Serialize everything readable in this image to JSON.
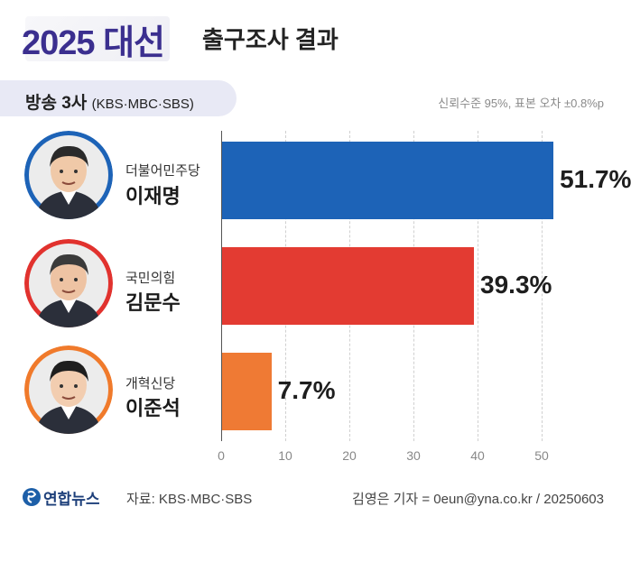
{
  "header": {
    "title_year": "2025 대선",
    "title_rest": "출구조사 결과",
    "subtitle_main": "방송 3사",
    "subtitle_detail": "(KBS·MBC·SBS)",
    "note": "신뢰수준 95%, 표본 오차 ±0.8%p"
  },
  "candidates": [
    {
      "party": "더불어민주당",
      "name": "이재명",
      "percent_label": "51.7%",
      "ring_color": "#1d63b7",
      "face_color": "#f0c9a8",
      "hair_color": "#2a2a2a"
    },
    {
      "party": "국민의힘",
      "name": "김문수",
      "percent_label": "39.3%",
      "ring_color": "#e1322e",
      "face_color": "#eec3a3",
      "hair_color": "#3a3a3a"
    },
    {
      "party": "개혁신당",
      "name": "이준석",
      "percent_label": "7.7%",
      "ring_color": "#f07a2b",
      "face_color": "#f2cdb0",
      "hair_color": "#1e1e1e"
    }
  ],
  "chart_data": {
    "type": "bar",
    "orientation": "horizontal",
    "categories": [
      "이재명",
      "김문수",
      "이준석"
    ],
    "values": [
      51.7,
      39.3,
      7.7
    ],
    "colors": [
      "#1d63b7",
      "#e33b32",
      "#ef7a34"
    ],
    "xlim": [
      0,
      55
    ],
    "xticks": [
      0,
      10,
      20,
      30,
      40,
      50
    ],
    "grid": true,
    "legend": "none"
  },
  "footer": {
    "logo_text": "연합뉴스",
    "source": "자료: KBS·MBC·SBS",
    "credit": "김영은 기자 = 0eun@yna.co.kr / 20250603"
  }
}
